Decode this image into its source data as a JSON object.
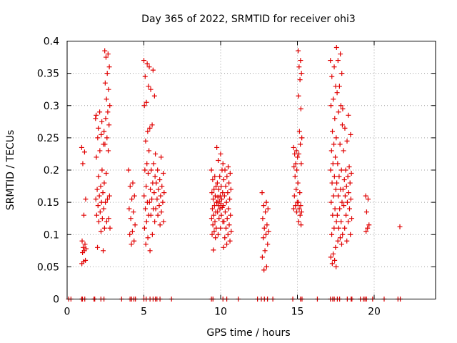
{
  "chart_data": {
    "type": "scatter",
    "title": "Day 365 of 2022, SRMTID for receiver ohi3",
    "xlabel": "GPS time / hours",
    "ylabel": "SRMTID / TECUs",
    "xlim": [
      0,
      24
    ],
    "ylim": [
      0,
      0.4
    ],
    "x_ticks": [
      0,
      5,
      10,
      15,
      20
    ],
    "x_tick_labels": [
      "0",
      "5",
      "10",
      "15",
      "20"
    ],
    "y_ticks": [
      0,
      0.05,
      0.1,
      0.15,
      0.2,
      0.25,
      0.3,
      0.35,
      0.4
    ],
    "y_tick_labels": [
      "0",
      "0.05",
      "0.1",
      "0.15",
      "0.2",
      "0.25",
      "0.3",
      "0.35",
      "0.4"
    ],
    "grid": true,
    "marker": "+",
    "color": "#e00000",
    "series": [
      {
        "name": "SRMTID",
        "clusters": [
          {
            "x_range": [
              0.95,
              1.25
            ],
            "y_values": [
              0.235,
              0.228,
              0.21,
              0.155,
              0.13,
              0.09,
              0.085,
              0.08,
              0.078,
              0.075,
              0.072,
              0.06,
              0.058,
              0.055
            ]
          },
          {
            "x_range": [
              1.85,
              2.45
            ],
            "y_values": [
              0.28,
              0.255,
              0.25,
              0.24,
              0.23,
              0.22,
              0.2,
              0.19,
              0.18,
              0.175,
              0.17,
              0.165,
              0.16,
              0.155,
              0.15,
              0.145,
              0.14,
              0.135,
              0.13,
              0.125,
              0.12,
              0.11,
              0.105,
              0.08,
              0.075,
              0.29,
              0.285,
              0.275,
              0.265,
              0.26
            ]
          },
          {
            "x_range": [
              2.45,
              2.8
            ],
            "y_values": [
              0.385,
              0.38,
              0.375,
              0.36,
              0.35,
              0.335,
              0.325,
              0.31,
              0.3,
              0.29,
              0.28,
              0.27,
              0.25,
              0.24,
              0.23,
              0.195,
              0.16,
              0.155,
              0.15,
              0.125,
              0.12,
              0.11
            ]
          },
          {
            "x_range": [
              4.0,
              4.45
            ],
            "y_values": [
              0.2,
              0.18,
              0.175,
              0.16,
              0.155,
              0.14,
              0.135,
              0.125,
              0.115,
              0.105,
              0.1,
              0.09,
              0.085
            ]
          },
          {
            "x_range": [
              5.0,
              5.35
            ],
            "y_values": [
              0.37,
              0.365,
              0.345,
              0.33,
              0.305,
              0.3,
              0.26,
              0.245,
              0.23,
              0.21,
              0.2,
              0.195,
              0.175,
              0.16,
              0.15,
              0.14,
              0.13,
              0.12,
              0.11,
              0.095,
              0.085
            ]
          },
          {
            "x_range": [
              5.35,
              5.75
            ],
            "y_values": [
              0.36,
              0.355,
              0.325,
              0.315,
              0.27,
              0.265,
              0.21,
              0.2,
              0.19,
              0.18,
              0.17,
              0.165,
              0.155,
              0.15,
              0.14,
              0.13,
              0.12,
              0.1,
              0.075
            ]
          },
          {
            "x_range": [
              5.75,
              6.35
            ],
            "y_values": [
              0.225,
              0.22,
              0.2,
              0.195,
              0.185,
              0.18,
              0.175,
              0.17,
              0.165,
              0.16,
              0.155,
              0.15,
              0.145,
              0.14,
              0.135,
              0.13,
              0.12,
              0.115
            ]
          },
          {
            "x_range": [
              9.4,
              9.75
            ],
            "y_values": [
              0.2,
              0.19,
              0.185,
              0.175,
              0.17,
              0.165,
              0.16,
              0.155,
              0.15,
              0.145,
              0.14,
              0.135,
              0.13,
              0.125,
              0.12,
              0.115,
              0.11,
              0.105,
              0.1,
              0.095,
              0.076
            ]
          },
          {
            "x_range": [
              9.75,
              10.15
            ],
            "y_values": [
              0.235,
              0.225,
              0.215,
              0.2,
              0.19,
              0.18,
              0.175,
              0.17,
              0.165,
              0.16,
              0.158,
              0.155,
              0.152,
              0.15,
              0.148,
              0.145,
              0.142,
              0.14,
              0.135,
              0.13,
              0.125,
              0.12,
              0.11,
              0.1
            ]
          },
          {
            "x_range": [
              10.15,
              10.7
            ],
            "y_values": [
              0.21,
              0.205,
              0.2,
              0.195,
              0.19,
              0.185,
              0.18,
              0.175,
              0.17,
              0.165,
              0.16,
              0.155,
              0.15,
              0.145,
              0.14,
              0.135,
              0.13,
              0.125,
              0.12,
              0.115,
              0.11,
              0.105,
              0.1,
              0.095,
              0.09,
              0.085,
              0.08
            ]
          },
          {
            "x_range": [
              12.7,
              13.15
            ],
            "y_values": [
              0.165,
              0.15,
              0.145,
              0.14,
              0.135,
              0.125,
              0.115,
              0.11,
              0.105,
              0.1,
              0.095,
              0.085,
              0.075,
              0.065,
              0.05,
              0.045
            ]
          },
          {
            "x_range": [
              14.75,
              15.05
            ],
            "y_values": [
              0.235,
              0.23,
              0.225,
              0.22,
              0.21,
              0.205,
              0.2,
              0.19,
              0.18,
              0.17,
              0.16,
              0.15,
              0.145,
              0.14,
              0.135
            ]
          },
          {
            "x_range": [
              15.05,
              15.3
            ],
            "y_values": [
              0.385,
              0.37,
              0.36,
              0.35,
              0.34,
              0.315,
              0.295,
              0.26,
              0.25,
              0.24,
              0.225,
              0.21,
              0.165,
              0.15,
              0.145,
              0.14,
              0.135,
              0.13,
              0.12,
              0.115
            ]
          },
          {
            "x_range": [
              17.15,
              17.55
            ],
            "y_values": [
              0.37,
              0.36,
              0.345,
              0.33,
              0.31,
              0.3,
              0.28,
              0.26,
              0.25,
              0.24,
              0.23,
              0.22,
              0.21,
              0.2,
              0.19,
              0.18,
              0.17,
              0.16,
              0.15,
              0.14,
              0.13,
              0.12,
              0.11,
              0.1,
              0.08,
              0.07,
              0.065,
              0.06,
              0.055,
              0.05
            ]
          },
          {
            "x_range": [
              17.55,
              17.95
            ],
            "y_values": [
              0.39,
              0.38,
              0.37,
              0.35,
              0.33,
              0.32,
              0.3,
              0.29,
              0.27,
              0.24,
              0.21,
              0.2,
              0.19,
              0.18,
              0.17,
              0.16,
              0.15,
              0.14,
              0.13,
              0.12,
              0.11,
              0.1,
              0.095,
              0.09,
              0.085
            ]
          },
          {
            "x_range": [
              17.95,
              18.55
            ],
            "y_values": [
              0.295,
              0.285,
              0.265,
              0.255,
              0.245,
              0.23,
              0.205,
              0.2,
              0.195,
              0.19,
              0.185,
              0.18,
              0.175,
              0.17,
              0.165,
              0.16,
              0.155,
              0.15,
              0.145,
              0.14,
              0.13,
              0.125,
              0.12,
              0.11,
              0.1,
              0.09
            ]
          },
          {
            "x_range": [
              19.45,
              19.7
            ],
            "y_values": [
              0.16,
              0.155,
              0.135,
              0.115,
              0.11,
              0.105
            ]
          },
          {
            "x_range": [
              21.65,
              21.7
            ],
            "y_values": [
              0.112
            ]
          }
        ],
        "zero_points_x": [
          0.1,
          0.25,
          0.95,
          1.0,
          1.15,
          1.75,
          1.8,
          2.2,
          2.4,
          3.55,
          4.1,
          4.2,
          4.35,
          4.45,
          5.0,
          5.15,
          5.4,
          5.6,
          5.75,
          5.85,
          6.05,
          6.8,
          9.4,
          9.5,
          10.15,
          10.4,
          11.15,
          12.4,
          12.65,
          12.85,
          13.05,
          13.4,
          14.7,
          15.2,
          15.3,
          16.3,
          17.15,
          17.3,
          17.4,
          17.6,
          17.75,
          18.25,
          18.5,
          18.55,
          19.1,
          19.3,
          19.4,
          19.5,
          19.9,
          20.65,
          21.55,
          21.7
        ]
      }
    ]
  }
}
